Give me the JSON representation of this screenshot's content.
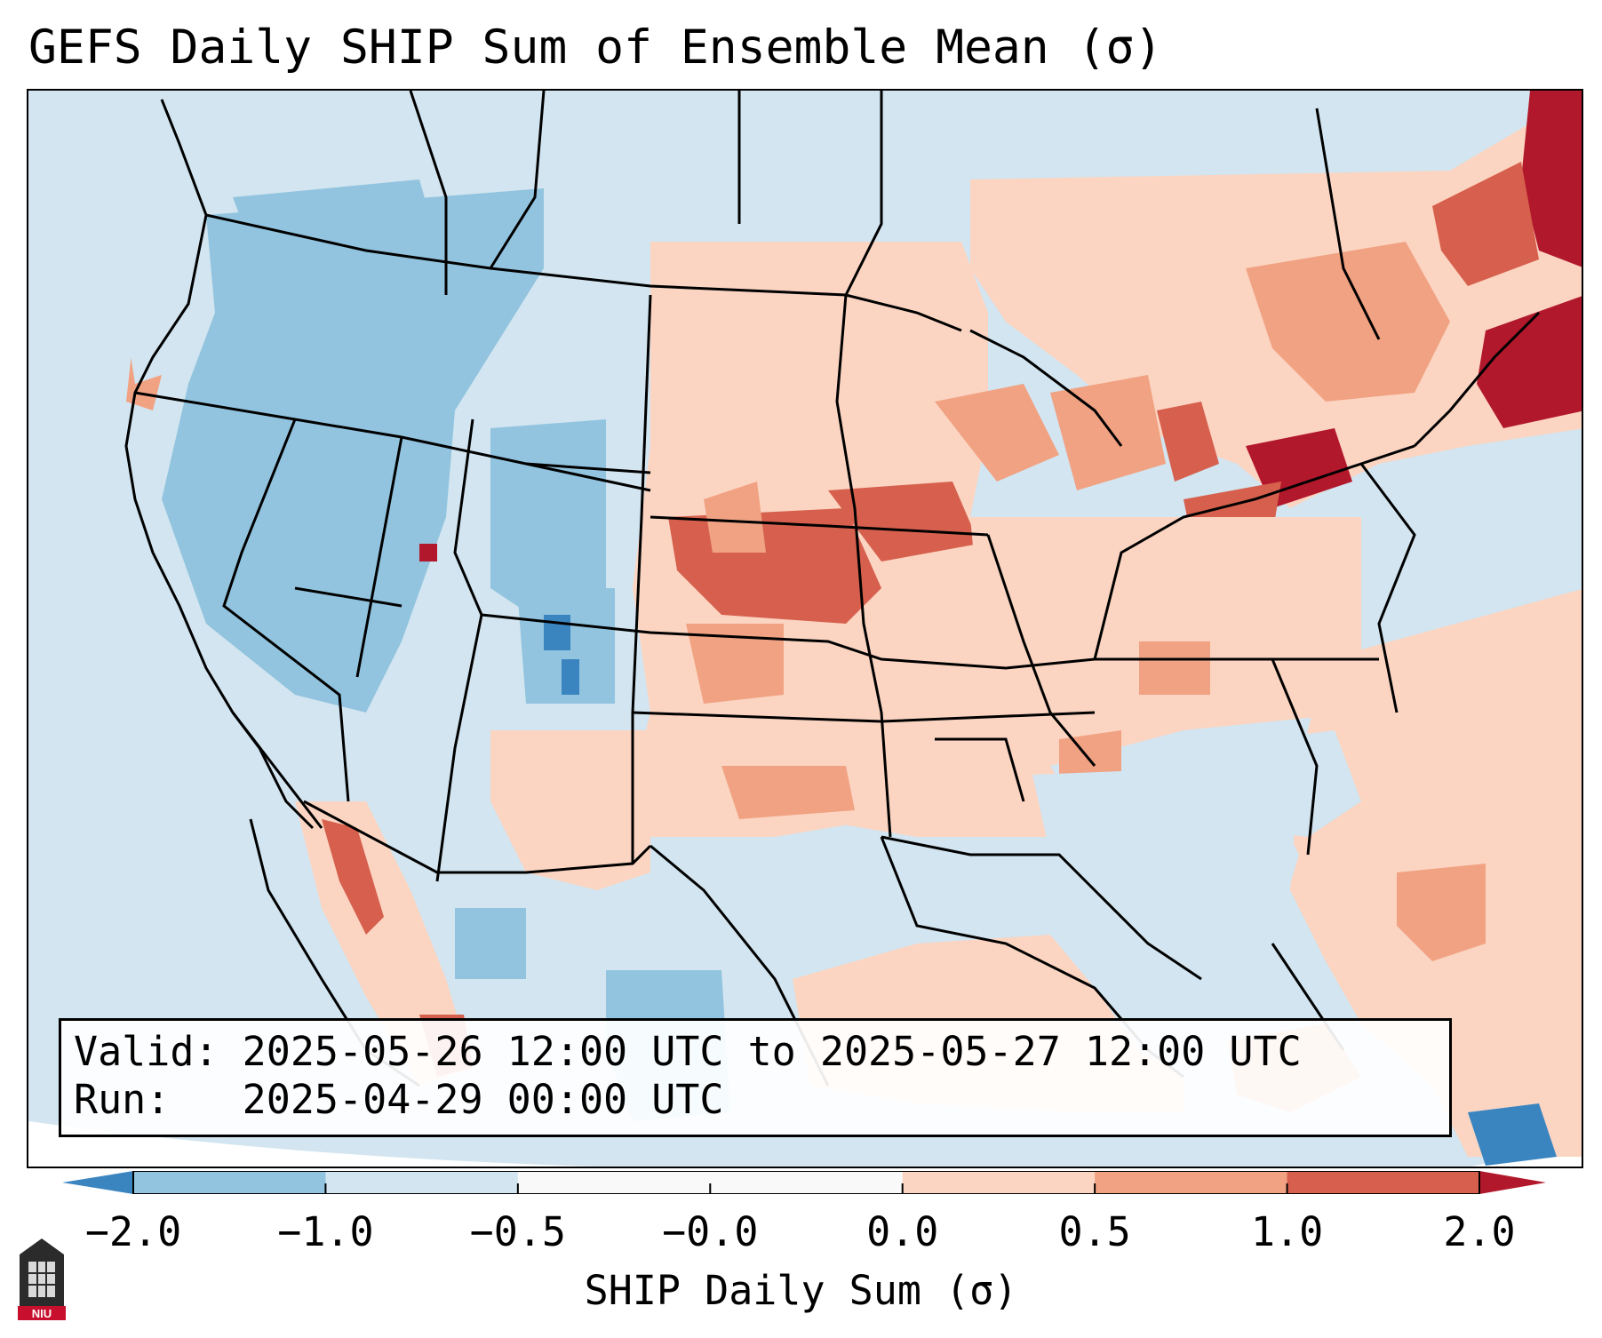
{
  "title": "GEFS Daily SHIP Sum of Ensemble Mean (σ)",
  "info": {
    "valid_line": "Valid: 2025-05-26 12:00 UTC to 2025-05-27 12:00 UTC",
    "run_line": "Run:   2025-04-29 00:00 UTC"
  },
  "colorbar": {
    "label": "SHIP Daily Sum (σ)",
    "ticks": [
      "−2.0",
      "−1.0",
      "−0.5",
      "−0.0",
      "0.0",
      "0.5",
      "1.0",
      "2.0"
    ],
    "colors": [
      "#3a85c0",
      "#92c4df",
      "#d2e5f0",
      "#f9f9f9",
      "#fbd5c2",
      "#f1a283",
      "#d6604d",
      "#b2182b"
    ],
    "extend": "both"
  },
  "map": {
    "region": "Contiguous United States",
    "ocean_color": "#d2e5f0",
    "notable": "Positive anomalies (+0.5 to +2.0σ) over the central Plains, Great Lakes and Northeast; negative anomalies (−0.5 to −1.0σ) over the Intermountain West and Rockies"
  },
  "logo": {
    "text": "NIU"
  }
}
